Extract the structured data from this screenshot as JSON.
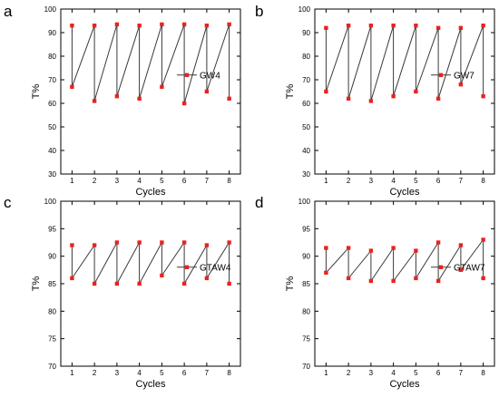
{
  "figure": {
    "background": "#ffffff",
    "line_color": "#3a3a3a",
    "marker_color": "#e8231f"
  },
  "chart_data": [
    {
      "panel_label": "a",
      "type": "line",
      "series": [
        {
          "name": "GW4",
          "points": [
            [
              1,
              93
            ],
            [
              1,
              67
            ],
            [
              2,
              93
            ],
            [
              2,
              61
            ],
            [
              3,
              93.5
            ],
            [
              3,
              63
            ],
            [
              4,
              93
            ],
            [
              4,
              62
            ],
            [
              5,
              93.5
            ],
            [
              5,
              67
            ],
            [
              6,
              93.5
            ],
            [
              6,
              60
            ],
            [
              7,
              93
            ],
            [
              7,
              65
            ],
            [
              8,
              93.5
            ],
            [
              8,
              62
            ]
          ]
        }
      ],
      "xlabel": "Cycles",
      "ylabel": "T%",
      "xlim": [
        0.5,
        8.5
      ],
      "ylim": [
        30,
        100
      ],
      "xticks": [
        1,
        2,
        3,
        4,
        5,
        6,
        7,
        8
      ],
      "yticks": [
        30,
        40,
        50,
        60,
        70,
        80,
        90,
        100
      ],
      "grid": false,
      "legend": "right"
    },
    {
      "panel_label": "b",
      "type": "line",
      "series": [
        {
          "name": "GW7",
          "points": [
            [
              1,
              92
            ],
            [
              1,
              65
            ],
            [
              2,
              93
            ],
            [
              2,
              62
            ],
            [
              3,
              93
            ],
            [
              3,
              61
            ],
            [
              4,
              93
            ],
            [
              4,
              63
            ],
            [
              5,
              93
            ],
            [
              5,
              65
            ],
            [
              6,
              92
            ],
            [
              6,
              62
            ],
            [
              7,
              92
            ],
            [
              7,
              68
            ],
            [
              8,
              93
            ],
            [
              8,
              63
            ]
          ]
        }
      ],
      "xlabel": "Cycles",
      "ylabel": "T%",
      "xlim": [
        0.5,
        8.5
      ],
      "ylim": [
        30,
        100
      ],
      "xticks": [
        1,
        2,
        3,
        4,
        5,
        6,
        7,
        8
      ],
      "yticks": [
        30,
        40,
        50,
        60,
        70,
        80,
        90,
        100
      ],
      "grid": false,
      "legend": "right"
    },
    {
      "panel_label": "c",
      "type": "line",
      "series": [
        {
          "name": "GTAW4",
          "points": [
            [
              1,
              92
            ],
            [
              1,
              86
            ],
            [
              2,
              92
            ],
            [
              2,
              85
            ],
            [
              3,
              92.5
            ],
            [
              3,
              85
            ],
            [
              4,
              92.5
            ],
            [
              4,
              85
            ],
            [
              5,
              92.5
            ],
            [
              5,
              86.5
            ],
            [
              6,
              92.5
            ],
            [
              6,
              85
            ],
            [
              7,
              92
            ],
            [
              7,
              86
            ],
            [
              8,
              92.5
            ],
            [
              8,
              85
            ]
          ]
        }
      ],
      "xlabel": "Cycles",
      "ylabel": "T%",
      "xlim": [
        0.5,
        8.5
      ],
      "ylim": [
        70,
        100
      ],
      "xticks": [
        1,
        2,
        3,
        4,
        5,
        6,
        7,
        8
      ],
      "yticks": [
        70,
        75,
        80,
        85,
        90,
        95,
        100
      ],
      "grid": false,
      "legend": "right"
    },
    {
      "panel_label": "d",
      "type": "line",
      "series": [
        {
          "name": "GTAW7",
          "points": [
            [
              1,
              91.5
            ],
            [
              1,
              87
            ],
            [
              2,
              91.5
            ],
            [
              2,
              86
            ],
            [
              3,
              91
            ],
            [
              3,
              85.5
            ],
            [
              4,
              91.5
            ],
            [
              4,
              85.5
            ],
            [
              5,
              91
            ],
            [
              5,
              86
            ],
            [
              6,
              92.5
            ],
            [
              6,
              85.5
            ],
            [
              7,
              92
            ],
            [
              7,
              87.5
            ],
            [
              8,
              93
            ],
            [
              8,
              86
            ]
          ]
        }
      ],
      "xlabel": "Cycles",
      "ylabel": "T%",
      "xlim": [
        0.5,
        8.5
      ],
      "ylim": [
        70,
        100
      ],
      "xticks": [
        1,
        2,
        3,
        4,
        5,
        6,
        7,
        8
      ],
      "yticks": [
        70,
        75,
        80,
        85,
        90,
        95,
        100
      ],
      "grid": false,
      "legend": "right"
    }
  ]
}
